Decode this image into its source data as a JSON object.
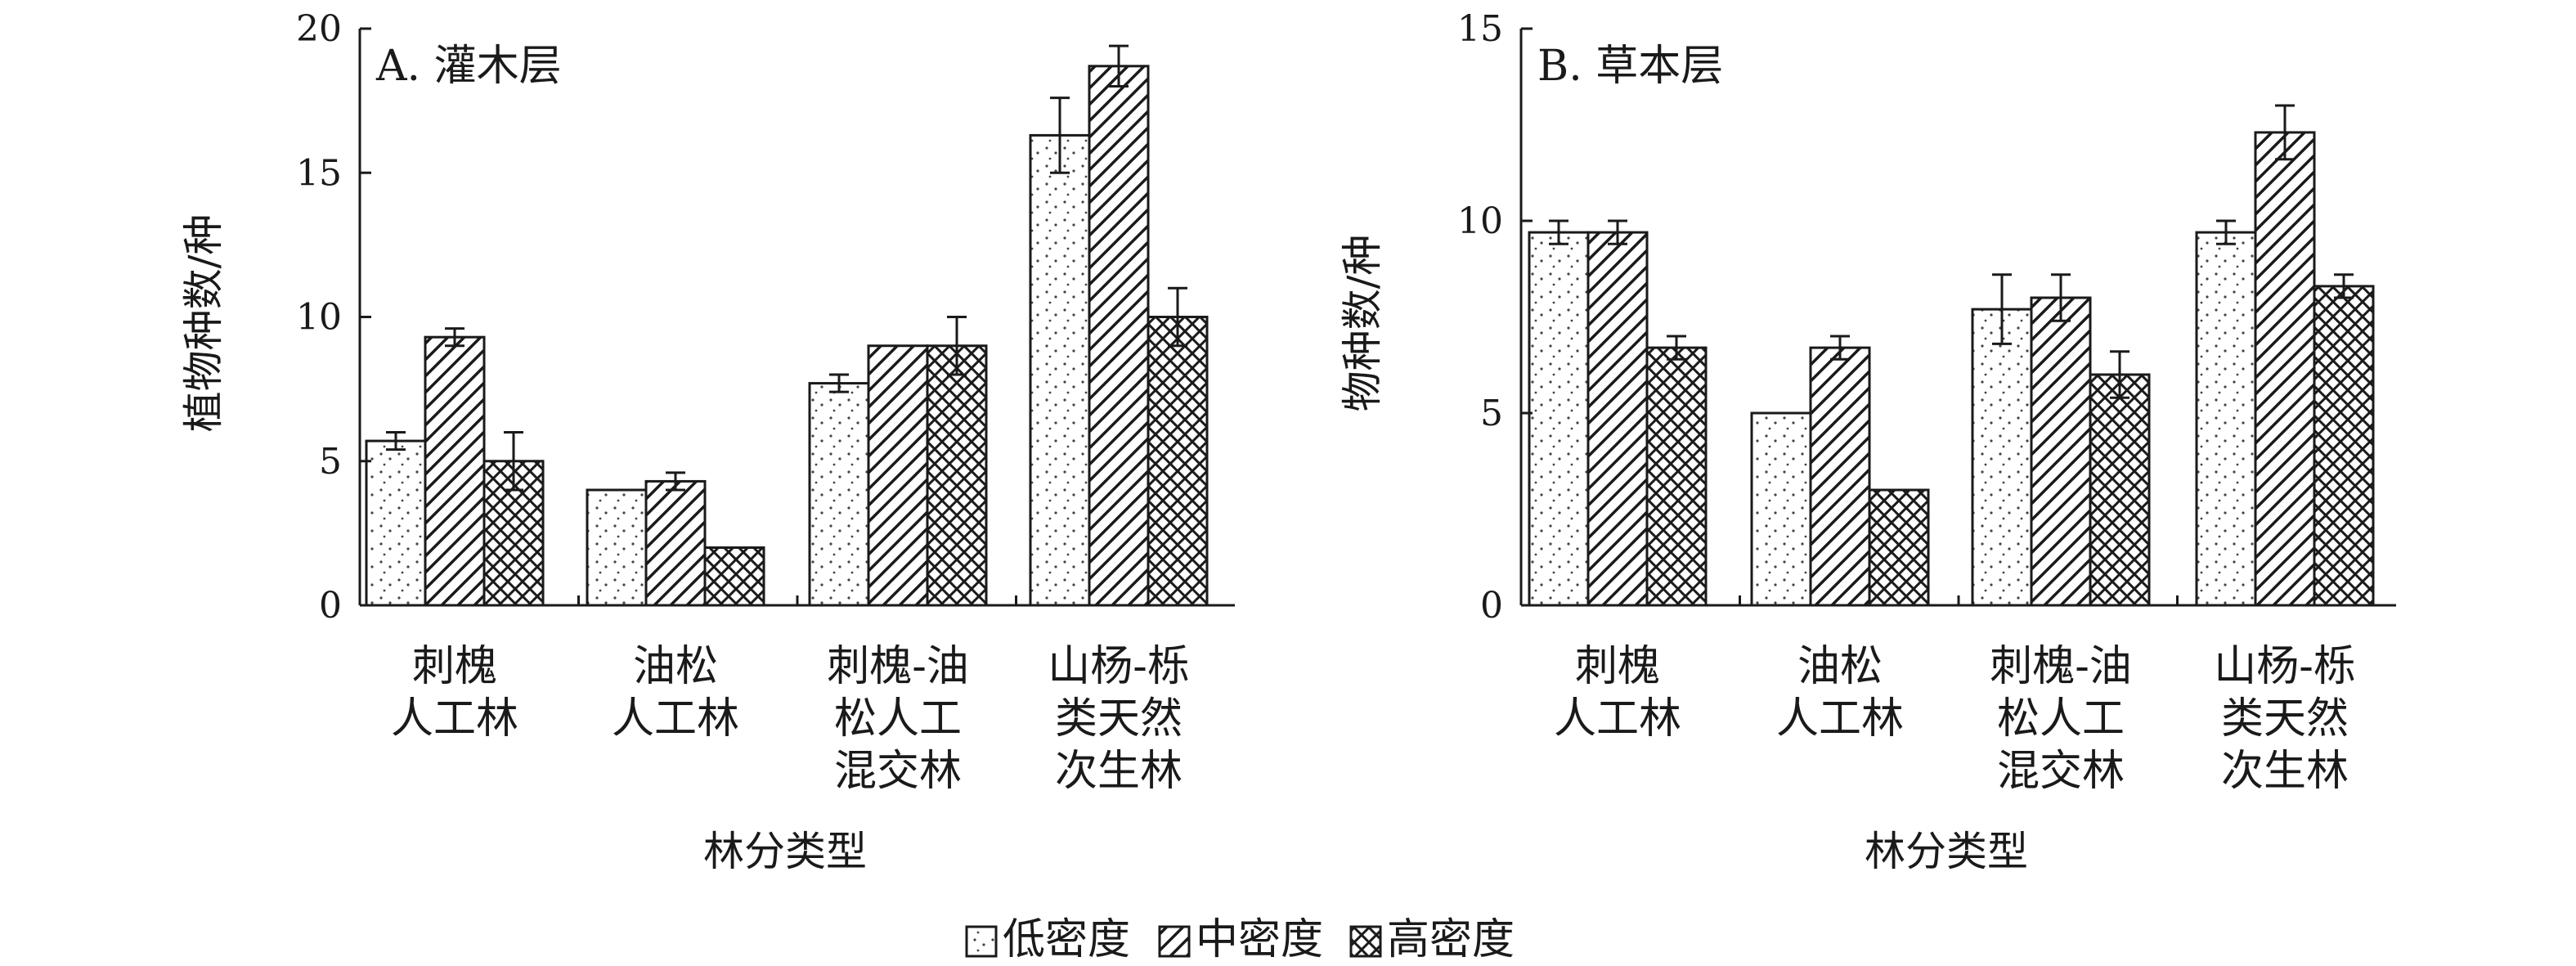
{
  "chart_data": [
    {
      "type": "bar",
      "panel_label": "A. 灌木层",
      "ylabel": "植物种数/种",
      "xlabel": "林分类型",
      "ylim": [
        0,
        20
      ],
      "yticks": [
        "0",
        "5",
        "10",
        "15",
        "20"
      ],
      "categories": [
        [
          "刺槐",
          "人工林"
        ],
        [
          "油松",
          "人工林"
        ],
        [
          "刺槐-油",
          "松人工",
          "混交林"
        ],
        [
          "山杨-栎",
          "类天然",
          "次生林"
        ]
      ],
      "series": [
        {
          "name": "低密度",
          "values": [
            5.7,
            4.0,
            7.7,
            16.3
          ],
          "errors": [
            0.3,
            0,
            0.3,
            1.3
          ]
        },
        {
          "name": "中密度",
          "values": [
            9.3,
            4.3,
            9.0,
            18.7
          ],
          "errors": [
            0.3,
            0.3,
            0,
            0.7
          ]
        },
        {
          "name": "高密度",
          "values": [
            5.0,
            2.0,
            9.0,
            10.0
          ],
          "errors": [
            1.0,
            0,
            1.0,
            1.0
          ]
        }
      ]
    },
    {
      "type": "bar",
      "panel_label": "B. 草本层",
      "ylabel": "物种数/种",
      "xlabel": "林分类型",
      "ylim": [
        0,
        15
      ],
      "yticks": [
        "0",
        "5",
        "10",
        "15"
      ],
      "categories": [
        [
          "刺槐",
          "人工林"
        ],
        [
          "油松",
          "人工林"
        ],
        [
          "刺槐-油",
          "松人工",
          "混交林"
        ],
        [
          "山杨-栎",
          "类天然",
          "次生林"
        ]
      ],
      "series": [
        {
          "name": "低密度",
          "values": [
            9.7,
            5.0,
            7.7,
            9.7
          ],
          "errors": [
            0.3,
            0,
            0.9,
            0.3
          ]
        },
        {
          "name": "中密度",
          "values": [
            9.7,
            6.7,
            8.0,
            12.3
          ],
          "errors": [
            0.3,
            0.3,
            0.6,
            0.7
          ]
        },
        {
          "name": "高密度",
          "values": [
            6.7,
            3.0,
            6.0,
            8.3
          ],
          "errors": [
            0.3,
            0,
            0.6,
            0.3
          ]
        }
      ]
    }
  ],
  "legend": [
    "低密度",
    "中密度",
    "高密度"
  ],
  "patterns": {
    "low": "stipple",
    "mid": "diagonal-hatch",
    "high": "crosshatch"
  },
  "colors": {
    "ink": "#1a1a1a",
    "background": "#ffffff"
  }
}
